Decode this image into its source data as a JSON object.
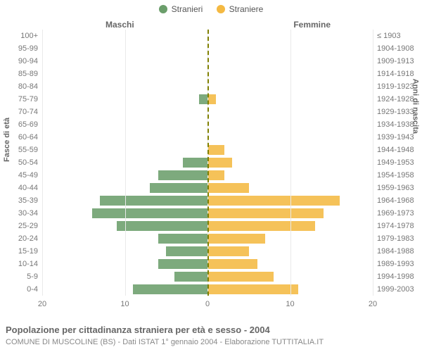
{
  "legend": {
    "male": {
      "label": "Stranieri",
      "color": "#6b9e6b"
    },
    "female": {
      "label": "Straniere",
      "color": "#f4b942"
    }
  },
  "header_left": "Maschi",
  "header_right": "Femmine",
  "y_title_left": "Fasce di età",
  "y_title_right": "Anni di nascita",
  "footer_title": "Popolazione per cittadinanza straniera per età e sesso - 2004",
  "footer_sub": "COMUNE DI MUSCOLINE (BS) - Dati ISTAT 1° gennaio 2004 - Elaborazione TUTTITALIA.IT",
  "chart": {
    "type": "population-pyramid",
    "x_max": 20,
    "x_ticks": [
      20,
      10,
      0,
      10,
      20
    ],
    "grid_color": "#e9e9e9",
    "center_color": "#808000",
    "background_color": "#ffffff",
    "bar_color_left": "#6b9e6b",
    "bar_color_right": "#f4b942",
    "label_fontsize": 11,
    "rows": [
      {
        "age": "100+",
        "year": "≤ 1903",
        "m": 0,
        "f": 0
      },
      {
        "age": "95-99",
        "year": "1904-1908",
        "m": 0,
        "f": 0
      },
      {
        "age": "90-94",
        "year": "1909-1913",
        "m": 0,
        "f": 0
      },
      {
        "age": "85-89",
        "year": "1914-1918",
        "m": 0,
        "f": 0
      },
      {
        "age": "80-84",
        "year": "1919-1923",
        "m": 0,
        "f": 0
      },
      {
        "age": "75-79",
        "year": "1924-1928",
        "m": 1,
        "f": 1
      },
      {
        "age": "70-74",
        "year": "1929-1933",
        "m": 0,
        "f": 0
      },
      {
        "age": "65-69",
        "year": "1934-1938",
        "m": 0,
        "f": 0
      },
      {
        "age": "60-64",
        "year": "1939-1943",
        "m": 0,
        "f": 0
      },
      {
        "age": "55-59",
        "year": "1944-1948",
        "m": 0,
        "f": 2
      },
      {
        "age": "50-54",
        "year": "1949-1953",
        "m": 3,
        "f": 3
      },
      {
        "age": "45-49",
        "year": "1954-1958",
        "m": 6,
        "f": 2
      },
      {
        "age": "40-44",
        "year": "1959-1963",
        "m": 7,
        "f": 5
      },
      {
        "age": "35-39",
        "year": "1964-1968",
        "m": 13,
        "f": 16
      },
      {
        "age": "30-34",
        "year": "1969-1973",
        "m": 14,
        "f": 14
      },
      {
        "age": "25-29",
        "year": "1974-1978",
        "m": 11,
        "f": 13
      },
      {
        "age": "20-24",
        "year": "1979-1983",
        "m": 6,
        "f": 7
      },
      {
        "age": "15-19",
        "year": "1984-1988",
        "m": 5,
        "f": 5
      },
      {
        "age": "10-14",
        "year": "1989-1993",
        "m": 6,
        "f": 6
      },
      {
        "age": "5-9",
        "year": "1994-1998",
        "m": 4,
        "f": 8
      },
      {
        "age": "0-4",
        "year": "1999-2003",
        "m": 9,
        "f": 11
      }
    ]
  }
}
